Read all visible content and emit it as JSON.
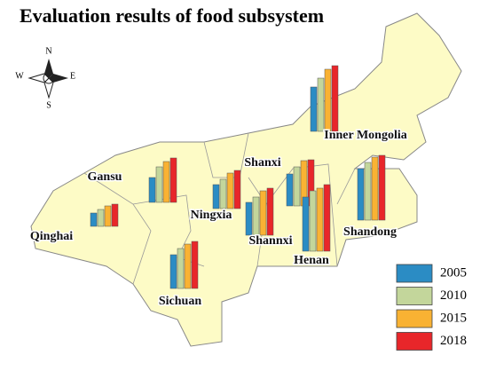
{
  "chart_data": {
    "type": "map-bar",
    "title": "Evaluation results of food subsystem",
    "compass": {
      "n": "N",
      "s": "S",
      "e": "E",
      "w": "W"
    },
    "categories": [
      "Inner Mongolia",
      "Gansu",
      "Qinghai",
      "Ningxia",
      "Shanxi",
      "Shannxi",
      "Henan",
      "Shandong",
      "Sichuan"
    ],
    "series": [
      {
        "name": "2005",
        "color": "#2b8cc4",
        "values": [
          50,
          28,
          15,
          27,
          36,
          37,
          61,
          58,
          38
        ]
      },
      {
        "name": "2010",
        "color": "#c3d69b",
        "values": [
          60,
          40,
          19,
          33,
          44,
          43,
          68,
          65,
          45
        ]
      },
      {
        "name": "2015",
        "color": "#f9b233",
        "values": [
          70,
          46,
          23,
          40,
          51,
          50,
          71,
          71,
          50
        ]
      },
      {
        "name": "2018",
        "color": "#e8262a",
        "values": [
          74,
          50,
          25,
          43,
          52,
          53,
          75,
          73,
          53
        ]
      }
    ]
  }
}
